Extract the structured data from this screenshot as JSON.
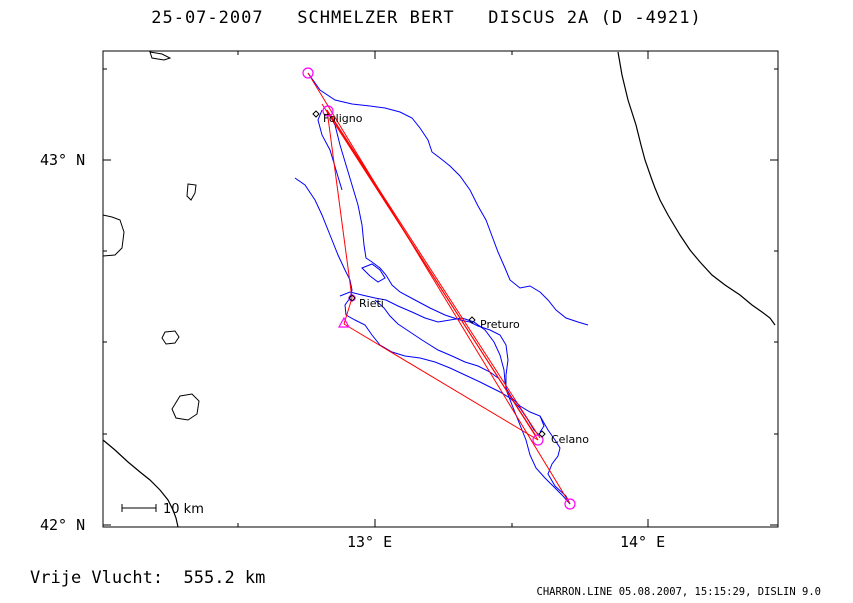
{
  "header": {
    "title": "25-07-2007   SCHMELZER BERT   DISCUS 2A (D -4921)"
  },
  "axes": {
    "lat_labels": [
      "43° N",
      "42° N"
    ],
    "lon_labels": [
      "13° E",
      "14° E"
    ]
  },
  "scale_bar": {
    "label": "10 km"
  },
  "places": [
    {
      "name": "Foligno"
    },
    {
      "name": "Rieti"
    },
    {
      "name": "Preturo"
    },
    {
      "name": "Celano"
    }
  ],
  "flight": {
    "distance_label": "Vrije Vlucht:  555.2 km"
  },
  "footer": {
    "text": "CHARRON.LINE 05.08.2007, 15:15:29, DISLIN 9.0"
  },
  "colors": {
    "track": "#0000ff",
    "task": "#ff0000",
    "turnpoint": "#ff00ff",
    "coast": "#000000"
  }
}
